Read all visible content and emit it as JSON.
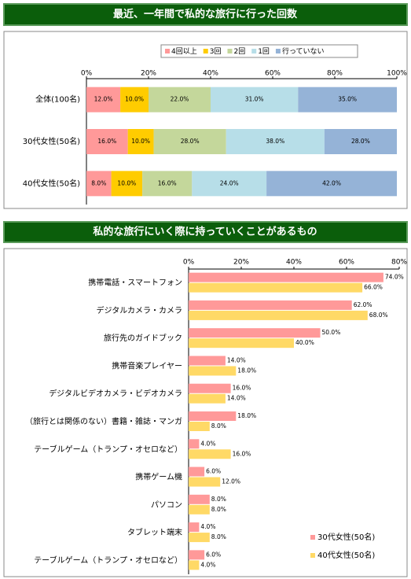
{
  "chart_data": [
    {
      "type": "bar",
      "orientation": "horizontal",
      "stacked": "percent",
      "title": "最近、一年間で私的な旅行に行った回数",
      "categories": [
        "全体(100名)",
        "30代女性(50名)",
        "40代女性(50名)"
      ],
      "series": [
        {
          "name": "4回以上",
          "color": "#ff9999",
          "values": [
            12,
            16,
            8
          ],
          "value_labels": [
            "12.0%",
            "16.0%",
            "8.0%"
          ]
        },
        {
          "name": "3回",
          "color": "#ffcc00",
          "values": [
            10,
            10,
            10
          ],
          "value_labels": [
            "10.0%",
            "10.0%",
            "10.0%"
          ]
        },
        {
          "name": "2回",
          "color": "#c4d79b",
          "values": [
            22,
            28,
            16
          ],
          "value_labels": [
            "22.0%",
            "28.0%",
            "16.0%"
          ]
        },
        {
          "name": "1回",
          "color": "#b7dee8",
          "values": [
            31,
            38,
            24
          ],
          "value_labels": [
            "31.0%",
            "38.0%",
            "24.0%"
          ]
        },
        {
          "name": "行っていない",
          "color": "#95b3d7",
          "values": [
            35,
            28,
            42
          ],
          "value_labels": [
            "35.0%",
            "28.0%",
            "42.0%"
          ]
        }
      ],
      "xlim": [
        0,
        100
      ],
      "xticks": [
        {
          "value": 0,
          "label": "0%"
        },
        {
          "value": 20,
          "label": "20%"
        },
        {
          "value": 40,
          "label": "40%"
        },
        {
          "value": 60,
          "label": "60%"
        },
        {
          "value": 80,
          "label": "80%"
        },
        {
          "value": 100,
          "label": "100%"
        }
      ],
      "legend": "top"
    },
    {
      "type": "bar",
      "orientation": "horizontal",
      "title": "私的な旅行にいく際に持っていくことがあるもの",
      "categories": [
        "携帯電話・スマートフォン",
        "デジタルカメラ・カメラ",
        "旅行先のガイドブック",
        "携帯音楽プレイヤー",
        "デジタルビデオカメラ・ビデオカメラ",
        "（旅行とは関係のない）書籍・雑誌・マンガ",
        "テーブルゲーム（トランプ・オセロなど）",
        "携帯ゲーム機",
        "パソコン",
        "タブレット端末",
        "テーブルゲーム（トランプ・オセロなど）"
      ],
      "series": [
        {
          "name": "30代女性(50名)",
          "color": "#ff9999",
          "values": [
            74,
            62,
            50,
            14,
            16,
            18,
            4,
            6,
            8,
            4,
            6
          ],
          "value_labels": [
            "74.0%",
            "62.0%",
            "50.0%",
            "14.0%",
            "16.0%",
            "18.0%",
            "4.0%",
            "6.0%",
            "8.0%",
            "4.0%",
            "6.0%"
          ]
        },
        {
          "name": "40代女性(50名)",
          "color": "#ffd966",
          "values": [
            66,
            68,
            40,
            18,
            14,
            8,
            16,
            12,
            8,
            8,
            4
          ],
          "value_labels": [
            "66.0%",
            "68.0%",
            "40.0%",
            "18.0%",
            "14.0%",
            "8.0%",
            "16.0%",
            "12.0%",
            "8.0%",
            "8.0%",
            "4.0%"
          ]
        }
      ],
      "xlim": [
        0,
        80
      ],
      "xticks": [
        {
          "value": 0,
          "label": "0%"
        },
        {
          "value": 20,
          "label": "20%"
        },
        {
          "value": 40,
          "label": "40%"
        },
        {
          "value": 60,
          "label": "60%"
        },
        {
          "value": 80,
          "label": "80%"
        }
      ],
      "legend": "bottom-right"
    }
  ]
}
